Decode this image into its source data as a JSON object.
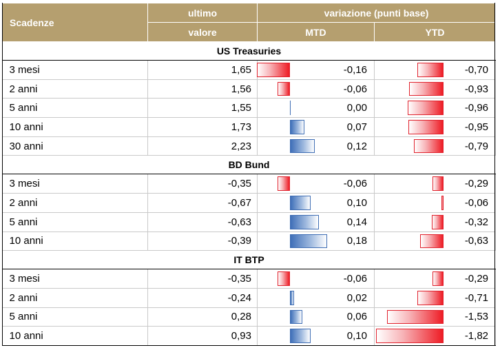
{
  "header": {
    "scadenze": "Scadenze",
    "ultimo_top": "ultimo",
    "ultimo_bottom": "valore",
    "variazione": "variazione (punti base)",
    "mtd": "MTD",
    "ytd": "YTD"
  },
  "colors": {
    "header_bg": "#b59f6f",
    "negative_bar": "#ee1c25",
    "positive_bar": "#3f6fb8"
  },
  "scales": {
    "mtd_max_abs": 0.18,
    "ytd_max_abs": 1.82
  },
  "sections": [
    {
      "title": "US Treasuries",
      "rows": [
        {
          "label": "3 mesi",
          "value": "1,65",
          "mtd": "-0,16",
          "ytd": "-0,70"
        },
        {
          "label": "2 anni",
          "value": "1,56",
          "mtd": "-0,06",
          "ytd": "-0,93"
        },
        {
          "label": "5 anni",
          "value": "1,55",
          "mtd": "0,00",
          "ytd": "-0,96"
        },
        {
          "label": "10 anni",
          "value": "1,73",
          "mtd": "0,07",
          "ytd": "-0,95"
        },
        {
          "label": "30 anni",
          "value": "2,23",
          "mtd": "0,12",
          "ytd": "-0,79"
        }
      ]
    },
    {
      "title": "BD Bund",
      "rows": [
        {
          "label": "3 mesi",
          "value": "-0,35",
          "mtd": "-0,06",
          "ytd": "-0,29"
        },
        {
          "label": "2 anni",
          "value": "-0,67",
          "mtd": "0,10",
          "ytd": "-0,06"
        },
        {
          "label": "5 anni",
          "value": "-0,63",
          "mtd": "0,14",
          "ytd": "-0,32"
        },
        {
          "label": "10 anni",
          "value": "-0,39",
          "mtd": "0,18",
          "ytd": "-0,63"
        }
      ]
    },
    {
      "title": "IT BTP",
      "rows": [
        {
          "label": "3 mesi",
          "value": "-0,35",
          "mtd": "-0,06",
          "ytd": "-0,29"
        },
        {
          "label": "2 anni",
          "value": "-0,24",
          "mtd": "0,02",
          "ytd": "-0,71"
        },
        {
          "label": "5 anni",
          "value": "0,28",
          "mtd": "0,06",
          "ytd": "-1,53"
        },
        {
          "label": "10 anni",
          "value": "0,93",
          "mtd": "0,10",
          "ytd": "-1,82"
        }
      ]
    }
  ]
}
